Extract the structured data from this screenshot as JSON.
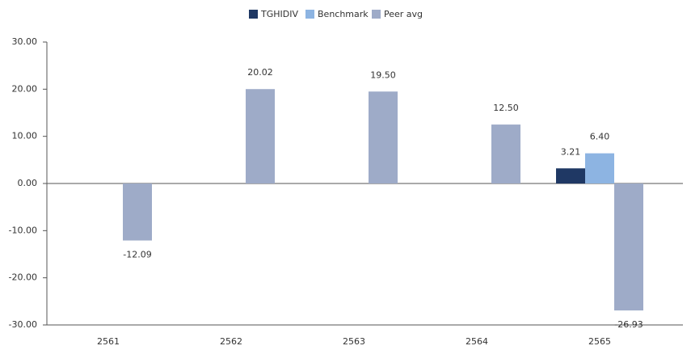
{
  "chart_data": {
    "type": "bar",
    "categories": [
      "2561",
      "2562",
      "2563",
      "2564",
      "2565"
    ],
    "series": [
      {
        "name": "TGHIDIV",
        "color": "#1f3864",
        "values": [
          null,
          null,
          null,
          null,
          3.21
        ],
        "value_labels": [
          null,
          null,
          null,
          null,
          "3.21"
        ]
      },
      {
        "name": "Benchmark",
        "color": "#8db4e2",
        "values": [
          null,
          null,
          null,
          null,
          6.4
        ],
        "value_labels": [
          null,
          null,
          null,
          null,
          "6.40"
        ]
      },
      {
        "name": "Peer avg",
        "color": "#9eabc8",
        "values": [
          -12.09,
          20.02,
          19.5,
          12.5,
          -26.93
        ],
        "value_labels": [
          "-12.09",
          "20.02",
          "19.50",
          "12.50",
          "-26.93"
        ]
      }
    ],
    "ylim": [
      -30,
      30
    ],
    "yticks": [
      {
        "value": -30,
        "label": "-30.00"
      },
      {
        "value": -20,
        "label": "-20.00"
      },
      {
        "value": -10,
        "label": "-10.00"
      },
      {
        "value": 0,
        "label": "0.00"
      },
      {
        "value": 10,
        "label": "10.00"
      },
      {
        "value": 20,
        "label": "20.00"
      },
      {
        "value": 30,
        "label": "30.00"
      }
    ],
    "legend": "top"
  }
}
